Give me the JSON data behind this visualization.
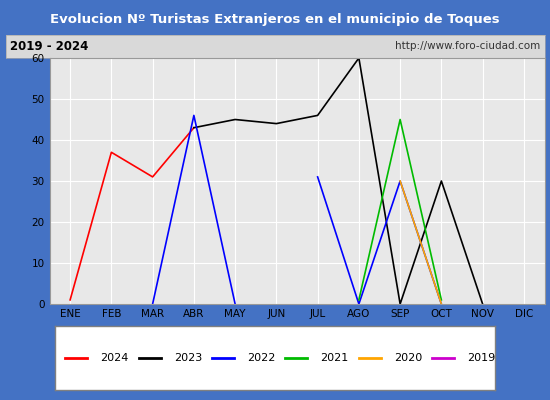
{
  "title": "Evolucion Nº Turistas Extranjeros en el municipio de Toques",
  "subtitle_left": "2019 - 2024",
  "subtitle_right": "http://www.foro-ciudad.com",
  "months": [
    "ENE",
    "FEB",
    "MAR",
    "ABR",
    "MAY",
    "JUN",
    "JUL",
    "AGO",
    "SEP",
    "OCT",
    "NOV",
    "DIC"
  ],
  "ylim": [
    0,
    60
  ],
  "yticks": [
    0,
    10,
    20,
    30,
    40,
    50,
    60
  ],
  "series": {
    "2024": {
      "color": "#ff0000",
      "data": [
        1,
        37,
        31,
        43,
        null,
        null,
        null,
        null,
        null,
        null,
        null,
        null
      ]
    },
    "2023": {
      "color": "#000000",
      "data": [
        null,
        null,
        null,
        43,
        45,
        44,
        46,
        60,
        0,
        30,
        0,
        null
      ]
    },
    "2022": {
      "color": "#0000ff",
      "data": [
        null,
        null,
        0,
        46,
        0,
        null,
        31,
        0,
        30,
        0,
        null,
        null
      ]
    },
    "2021": {
      "color": "#00bb00",
      "data": [
        null,
        null,
        null,
        null,
        null,
        null,
        null,
        1,
        45,
        1,
        null,
        null
      ]
    },
    "2020": {
      "color": "#ffa500",
      "data": [
        null,
        null,
        null,
        null,
        null,
        null,
        null,
        null,
        30,
        0,
        null,
        null
      ]
    },
    "2019": {
      "color": "#cc00cc",
      "data": [
        null,
        null,
        null,
        null,
        null,
        null,
        null,
        null,
        null,
        null,
        null,
        null
      ]
    }
  },
  "legend_order": [
    "2024",
    "2023",
    "2022",
    "2021",
    "2020",
    "2019"
  ],
  "title_bg_color": "#4472c4",
  "title_text_color": "#ffffff",
  "subtitle_bg_color": "#d9d9d9",
  "plot_bg_color": "#e8e8e8",
  "grid_color": "#ffffff",
  "border_color": "#4472c4",
  "legend_border_color": "#808080"
}
